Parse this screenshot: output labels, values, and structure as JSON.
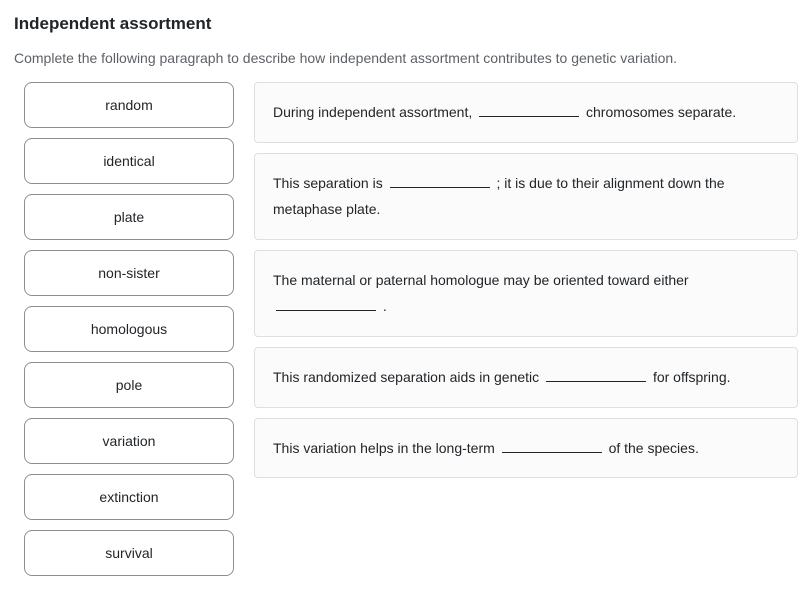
{
  "title": "Independent assortment",
  "instruction": "Complete the following paragraph to describe how independent assortment contributes to genetic variation.",
  "terms": [
    "random",
    "identical",
    "plate",
    "non-sister",
    "homologous",
    "pole",
    "variation",
    "extinction",
    "survival"
  ],
  "sentences": [
    {
      "pre": "During independent assortment, ",
      "post": " chromosomes separate."
    },
    {
      "pre": "This separation is ",
      "post": " ; it is due to their alignment down the metaphase plate."
    },
    {
      "pre": "The maternal or paternal homologue may be oriented toward either ",
      "post": " ."
    },
    {
      "pre": "This randomized separation aids in genetic ",
      "post": " for offspring."
    },
    {
      "pre": "This variation helps in the long-term ",
      "post": " of the species."
    }
  ]
}
